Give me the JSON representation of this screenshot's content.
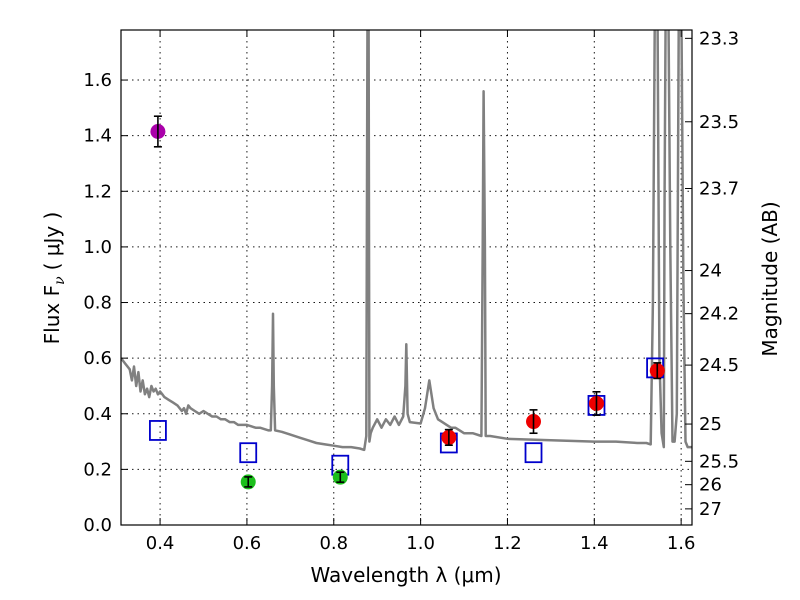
{
  "chart_data": {
    "type": "scatter",
    "title": "",
    "xlabel": "Wavelength  λ (μm)",
    "ylabel": "Flux  F",
    "ylabel_sub": "ν",
    "ylabel_unit": "( μJy )",
    "y2label": "Magnitude (AB)",
    "xlim": [
      0.31,
      1.625
    ],
    "ylim": [
      0.0,
      1.78
    ],
    "grid": true,
    "x_ticks": [
      0.4,
      0.6,
      0.8,
      1.0,
      1.2,
      1.4,
      1.6
    ],
    "x_tick_labels": [
      "0.4",
      "0.6",
      "0.8",
      "1.0",
      "1.2",
      "1.4",
      "1.6"
    ],
    "y_ticks": [
      0.0,
      0.2,
      0.4,
      0.6,
      0.8,
      1.0,
      1.2,
      1.4,
      1.6
    ],
    "y_tick_labels": [
      "0.0",
      "0.2",
      "0.4",
      "0.6",
      "0.8",
      "1.0",
      "1.2",
      "1.4",
      "1.6"
    ],
    "y2_ticks": [
      {
        "label": "23.3",
        "flux": 1.75
      },
      {
        "label": "23.5",
        "flux": 1.45
      },
      {
        "label": "23.7",
        "flux": 1.21
      },
      {
        "label": "24",
        "flux": 0.915
      },
      {
        "label": "24.2",
        "flux": 0.76
      },
      {
        "label": "24.5",
        "flux": 0.575
      },
      {
        "label": "25",
        "flux": 0.363
      },
      {
        "label": "25.5",
        "flux": 0.229
      },
      {
        "label": "26",
        "flux": 0.145
      },
      {
        "label": "27",
        "flux": 0.058
      }
    ],
    "series": [
      {
        "name": "model spectrum",
        "kind": "line",
        "color": "#808080",
        "x": [
          0.31,
          0.32,
          0.33,
          0.335,
          0.34,
          0.345,
          0.35,
          0.355,
          0.36,
          0.365,
          0.37,
          0.375,
          0.38,
          0.385,
          0.39,
          0.395,
          0.4,
          0.405,
          0.41,
          0.42,
          0.43,
          0.44,
          0.45,
          0.455,
          0.46,
          0.465,
          0.47,
          0.48,
          0.49,
          0.5,
          0.51,
          0.52,
          0.53,
          0.54,
          0.55,
          0.56,
          0.57,
          0.58,
          0.59,
          0.6,
          0.61,
          0.62,
          0.63,
          0.64,
          0.65,
          0.655,
          0.658,
          0.66,
          0.662,
          0.665,
          0.68,
          0.7,
          0.72,
          0.74,
          0.76,
          0.78,
          0.8,
          0.82,
          0.84,
          0.86,
          0.87,
          0.875,
          0.878,
          0.88,
          0.882,
          0.885,
          0.89,
          0.9,
          0.91,
          0.92,
          0.93,
          0.94,
          0.95,
          0.96,
          0.965,
          0.967,
          0.97,
          0.975,
          1.0,
          1.01,
          1.02,
          1.03,
          1.04,
          1.05,
          1.06,
          1.07,
          1.08,
          1.09,
          1.1,
          1.12,
          1.14,
          1.143,
          1.145,
          1.148,
          1.15,
          1.16,
          1.2,
          1.3,
          1.4,
          1.45,
          1.5,
          1.52,
          1.53,
          1.535,
          1.54,
          1.545,
          1.55,
          1.555,
          1.56,
          1.562,
          1.565,
          1.57,
          1.575,
          1.58,
          1.585,
          1.59,
          1.595,
          1.6,
          1.605,
          1.61,
          1.615,
          1.625
        ],
        "y": [
          0.6,
          0.58,
          0.56,
          0.52,
          0.57,
          0.5,
          0.55,
          0.48,
          0.52,
          0.47,
          0.49,
          0.46,
          0.5,
          0.48,
          0.49,
          0.47,
          0.48,
          0.47,
          0.46,
          0.45,
          0.44,
          0.43,
          0.41,
          0.42,
          0.4,
          0.43,
          0.42,
          0.41,
          0.4,
          0.41,
          0.4,
          0.39,
          0.39,
          0.38,
          0.38,
          0.37,
          0.37,
          0.36,
          0.36,
          0.36,
          0.355,
          0.35,
          0.35,
          0.345,
          0.34,
          0.34,
          0.5,
          0.76,
          0.5,
          0.34,
          0.335,
          0.325,
          0.315,
          0.305,
          0.295,
          0.29,
          0.285,
          0.28,
          0.28,
          0.275,
          0.27,
          0.32,
          2.0,
          2.0,
          0.3,
          0.33,
          0.35,
          0.38,
          0.35,
          0.38,
          0.36,
          0.39,
          0.36,
          0.39,
          0.5,
          0.65,
          0.4,
          0.37,
          0.365,
          0.42,
          0.52,
          0.42,
          0.38,
          0.37,
          0.36,
          0.35,
          0.35,
          0.34,
          0.33,
          0.33,
          0.32,
          1.0,
          1.56,
          1.0,
          0.32,
          0.32,
          0.31,
          0.305,
          0.3,
          0.3,
          0.295,
          0.295,
          0.29,
          0.8,
          2.0,
          2.0,
          0.6,
          0.33,
          0.28,
          1.2,
          2.0,
          2.0,
          1.0,
          0.3,
          0.3,
          0.4,
          2.0,
          2.0,
          0.9,
          0.3,
          0.28,
          0.28
        ]
      },
      {
        "name": "model photometry",
        "kind": "open-square",
        "color": "#0000cc",
        "x": [
          0.395,
          0.603,
          0.815,
          1.065,
          1.26,
          1.405,
          1.54
        ],
        "y": [
          0.34,
          0.26,
          0.215,
          0.295,
          0.26,
          0.43,
          0.565
        ]
      },
      {
        "name": "observed (purple)",
        "kind": "point",
        "color": "#aa00aa",
        "x": [
          0.395
        ],
        "y": [
          1.415
        ],
        "err": [
          0.055
        ]
      },
      {
        "name": "observed (green)",
        "kind": "point",
        "color": "#1bbf1b",
        "x": [
          0.603,
          0.815
        ],
        "y": [
          0.155,
          0.172
        ],
        "err": [
          0.018,
          0.018
        ]
      },
      {
        "name": "observed (red)",
        "kind": "point",
        "color": "#ee0000",
        "x": [
          1.065,
          1.26,
          1.405,
          1.545
        ],
        "y": [
          0.315,
          0.372,
          0.437,
          0.555
        ],
        "err": [
          0.028,
          0.042,
          0.042,
          0.028
        ]
      }
    ]
  }
}
